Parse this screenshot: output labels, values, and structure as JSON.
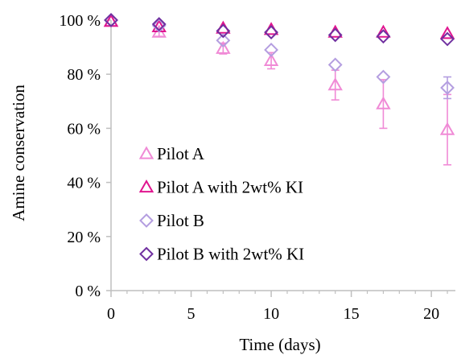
{
  "chart_data": {
    "type": "scatter",
    "xlabel": "Time (days)",
    "ylabel": "Amine conservation",
    "xlim": [
      0,
      21.5
    ],
    "ylim": [
      0,
      100
    ],
    "x_ticks": [
      0,
      5,
      10,
      15,
      20
    ],
    "y_ticks": [
      0,
      20,
      40,
      60,
      80,
      100
    ],
    "x_tick_labels": [
      "0",
      "5",
      "10",
      "15",
      "20"
    ],
    "y_tick_labels": [
      "0 %",
      "20 %",
      "40 %",
      "60 %",
      "80 %",
      "100 %"
    ],
    "grid": false,
    "legend_position": "bottom-left",
    "series": [
      {
        "name": "Pilot A",
        "marker": "triangle",
        "color": "#f08ad6",
        "x": [
          0,
          3,
          7,
          10,
          14,
          17,
          21
        ],
        "y": [
          99.5,
          95.5,
          89.5,
          85,
          76,
          69,
          59.5
        ],
        "err": [
          0,
          1.5,
          2,
          3,
          5.5,
          9,
          13
        ]
      },
      {
        "name": "Pilot A with 2wt% KI",
        "marker": "triangle",
        "color": "#e0158f",
        "x": [
          0,
          3,
          7,
          10,
          14,
          17,
          21
        ],
        "y": [
          99.5,
          97.5,
          97,
          96.5,
          95.5,
          95.5,
          95
        ],
        "err": [
          0,
          0,
          0,
          0,
          0,
          0,
          0
        ]
      },
      {
        "name": "Pilot B",
        "marker": "diamond",
        "color": "#b49ee0",
        "x": [
          0,
          3,
          7,
          10,
          14,
          17,
          21
        ],
        "y": [
          100,
          98,
          92.5,
          89,
          83.5,
          79,
          75
        ],
        "err": [
          0,
          0,
          0,
          0,
          0,
          0,
          4
        ]
      },
      {
        "name": "Pilot B with 2wt% KI",
        "marker": "diamond",
        "color": "#7030a0",
        "x": [
          0,
          3,
          7,
          10,
          14,
          17,
          21
        ],
        "y": [
          100,
          98.5,
          96,
          95.5,
          94.5,
          94,
          93
        ],
        "err": [
          0,
          0,
          0,
          0,
          0,
          0,
          0
        ]
      }
    ]
  }
}
